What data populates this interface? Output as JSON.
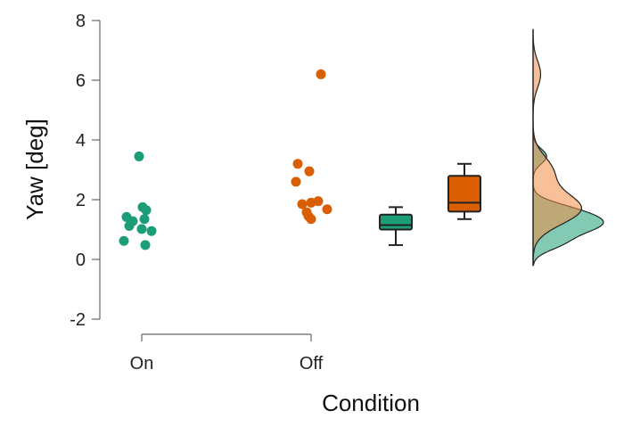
{
  "chart_data": {
    "type": "scatter",
    "subtype": "raincloud",
    "title": "",
    "xlabel": "Condition",
    "ylabel": "Yaw [deg]",
    "ylim": [
      -2,
      8
    ],
    "yticks": [
      -2,
      0,
      2,
      4,
      6,
      8
    ],
    "grid": false,
    "categories": [
      "On",
      "Off"
    ],
    "series": [
      {
        "color": "#1b9e77",
        "points": [
          3.45,
          1.75,
          1.65,
          1.42,
          1.35,
          1.28,
          1.12,
          1.02,
          0.95,
          0.62,
          0.48
        ],
        "box": {
          "min": 0.48,
          "q1": 1.0,
          "median": 1.15,
          "q3": 1.5,
          "max": 1.75
        }
      },
      {
        "color": "#d95f02",
        "points": [
          6.2,
          3.2,
          2.95,
          2.6,
          1.95,
          1.9,
          1.85,
          1.68,
          1.58,
          1.45,
          1.35
        ],
        "box": {
          "min": 1.35,
          "q1": 1.6,
          "median": 1.9,
          "q3": 2.8,
          "max": 3.2
        }
      }
    ]
  }
}
